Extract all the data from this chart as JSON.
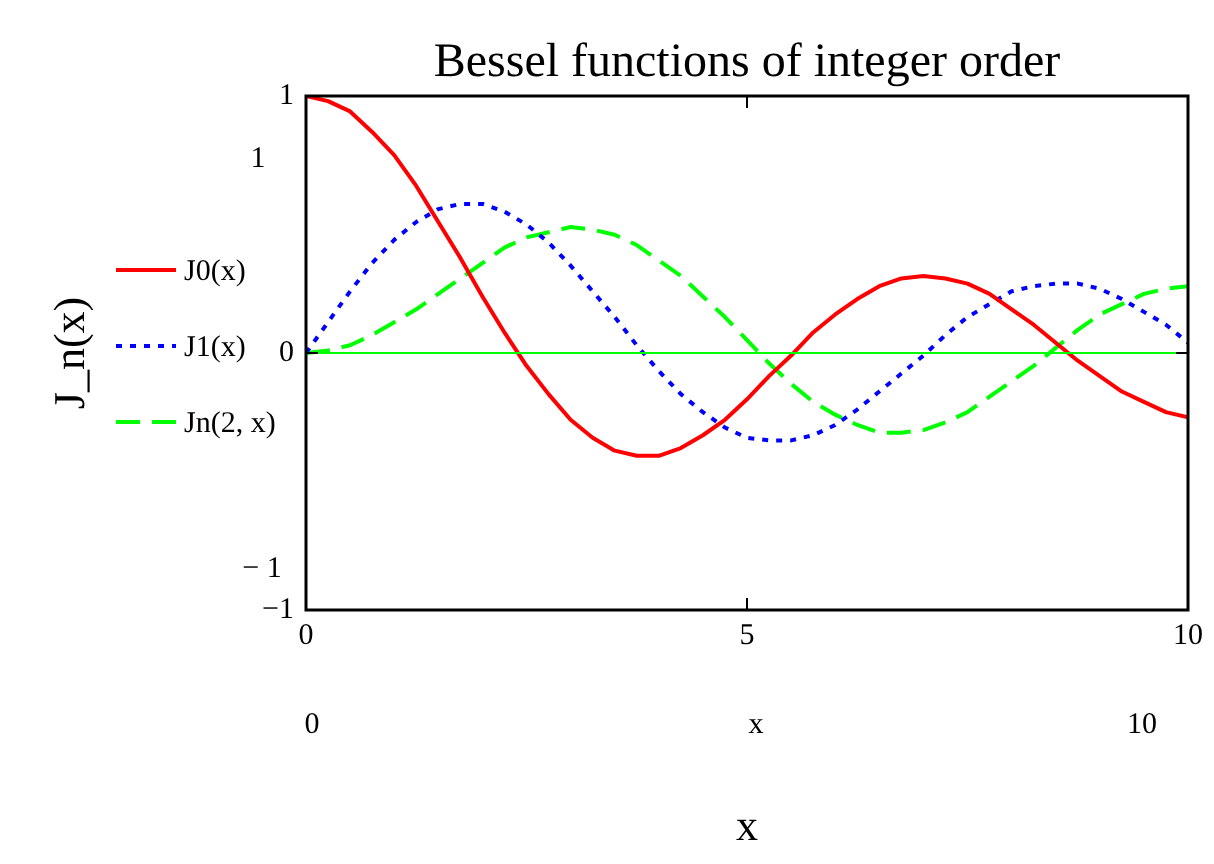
{
  "chart_data": {
    "type": "line",
    "title": "Bessel functions of integer order",
    "xlabel": "x",
    "ylabel": "J_n(x)",
    "x": [
      0,
      0.25,
      0.5,
      0.75,
      1,
      1.25,
      1.5,
      1.75,
      2,
      2.25,
      2.5,
      2.75,
      3,
      3.25,
      3.5,
      3.75,
      4,
      4.25,
      4.5,
      4.75,
      5,
      5.25,
      5.5,
      5.75,
      6,
      6.25,
      6.5,
      6.75,
      7,
      7.25,
      7.5,
      7.75,
      8,
      8.25,
      8.5,
      8.75,
      9,
      9.25,
      9.5,
      9.75,
      10
    ],
    "series": [
      {
        "name": "J0(x)",
        "color": "#ff0000",
        "line_style": "solid",
        "values": [
          1,
          0.98,
          0.94,
          0.86,
          0.77,
          0.65,
          0.51,
          0.37,
          0.22,
          0.08,
          -0.05,
          -0.16,
          -0.26,
          -0.33,
          -0.38,
          -0.4,
          -0.4,
          -0.37,
          -0.32,
          -0.26,
          -0.18,
          -0.09,
          -0.01,
          0.08,
          0.15,
          0.21,
          0.26,
          0.29,
          0.3,
          0.29,
          0.27,
          0.23,
          0.17,
          0.11,
          0.04,
          -0.03,
          -0.09,
          -0.15,
          -0.19,
          -0.23,
          -0.25
        ]
      },
      {
        "name": "J1(x)",
        "color": "#0000ff",
        "line_style": "dotted",
        "values": [
          0,
          0.12,
          0.24,
          0.35,
          0.44,
          0.51,
          0.56,
          0.58,
          0.58,
          0.55,
          0.5,
          0.43,
          0.34,
          0.24,
          0.14,
          0.03,
          -0.07,
          -0.16,
          -0.23,
          -0.29,
          -0.33,
          -0.34,
          -0.34,
          -0.32,
          -0.28,
          -0.22,
          -0.15,
          -0.08,
          -0.01,
          0.07,
          0.14,
          0.19,
          0.24,
          0.26,
          0.27,
          0.27,
          0.25,
          0.21,
          0.16,
          0.11,
          0.04
        ]
      },
      {
        "name": "Jn(2, x)",
        "color": "#00ff00",
        "line_style": "dashed",
        "values": [
          0,
          0.01,
          0.03,
          0.07,
          0.12,
          0.17,
          0.23,
          0.29,
          0.35,
          0.41,
          0.45,
          0.47,
          0.49,
          0.48,
          0.46,
          0.42,
          0.36,
          0.3,
          0.22,
          0.14,
          0.05,
          -0.04,
          -0.12,
          -0.19,
          -0.24,
          -0.28,
          -0.31,
          -0.31,
          -0.3,
          -0.27,
          -0.23,
          -0.17,
          -0.11,
          -0.05,
          0.02,
          0.09,
          0.15,
          0.19,
          0.23,
          0.25,
          0.26
        ]
      }
    ],
    "xlim": [
      0,
      10
    ],
    "xticks": [
      0,
      5,
      10
    ],
    "ylim": [
      -1,
      1
    ],
    "yticks": [
      {
        "value": -1,
        "label": "−1"
      },
      0,
      1
    ],
    "ref_lines": [
      {
        "axis": "y",
        "value": 0,
        "color": "#00ff00"
      }
    ],
    "grid": false,
    "legend": "left",
    "annotations": [
      "1",
      "− 1",
      "0",
      "x",
      "10"
    ]
  }
}
